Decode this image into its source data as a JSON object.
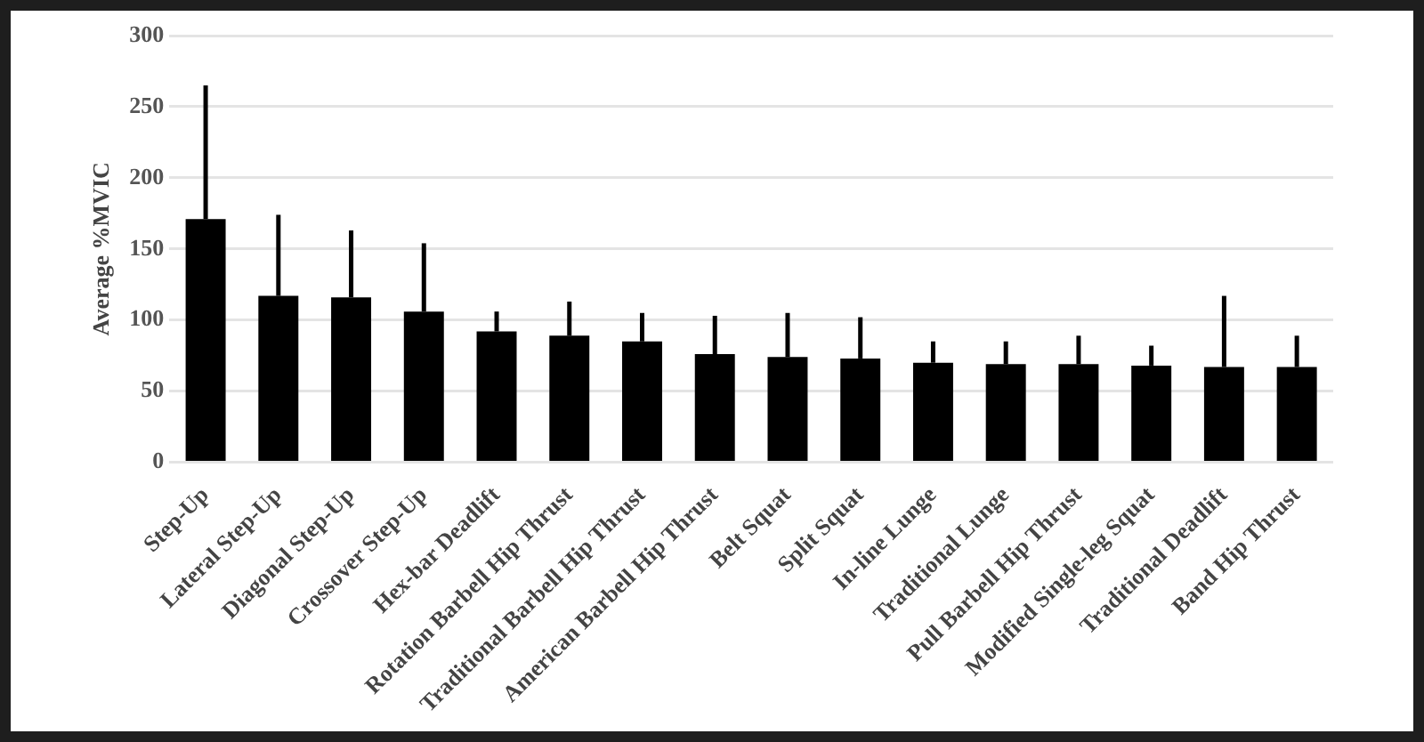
{
  "chart_data": {
    "type": "bar",
    "ylabel": "Average %MVIC",
    "categories": [
      "Step-Up",
      "Lateral Step-Up",
      "Diagonal Step-Up",
      "Crossover Step-Up",
      "Hex-bar Deadlift",
      "Rotation Barbell Hip Thrust",
      "Traditional Barbell Hip Thrust",
      "American Barbell Hip Thrust",
      "Belt Squat",
      "Split Squat",
      "In-line Lunge",
      "Traditional Lunge",
      "Pull Barbell Hip Thrust",
      "Modified Single-leg Squat",
      "Traditional Deadlift",
      "Band Hip Thrust"
    ],
    "values": [
      171,
      117,
      116,
      106,
      92,
      89,
      85,
      76,
      74,
      73,
      70,
      69,
      69,
      68,
      67,
      67
    ],
    "errors": [
      [
        171,
        265
      ],
      [
        117,
        174
      ],
      [
        116,
        163
      ],
      [
        106,
        154
      ],
      [
        92,
        106
      ],
      [
        89,
        113
      ],
      [
        85,
        105
      ],
      [
        76,
        103
      ],
      [
        74,
        105
      ],
      [
        73,
        102
      ],
      [
        70,
        85
      ],
      [
        69,
        85
      ],
      [
        69,
        89
      ],
      [
        68,
        82
      ],
      [
        67,
        117
      ],
      [
        67,
        89
      ]
    ],
    "color": "#000000",
    "ylim": [
      0,
      300
    ],
    "yticks": [
      0,
      50,
      100,
      150,
      200,
      250,
      300
    ],
    "grid": "y",
    "legend": false
  }
}
